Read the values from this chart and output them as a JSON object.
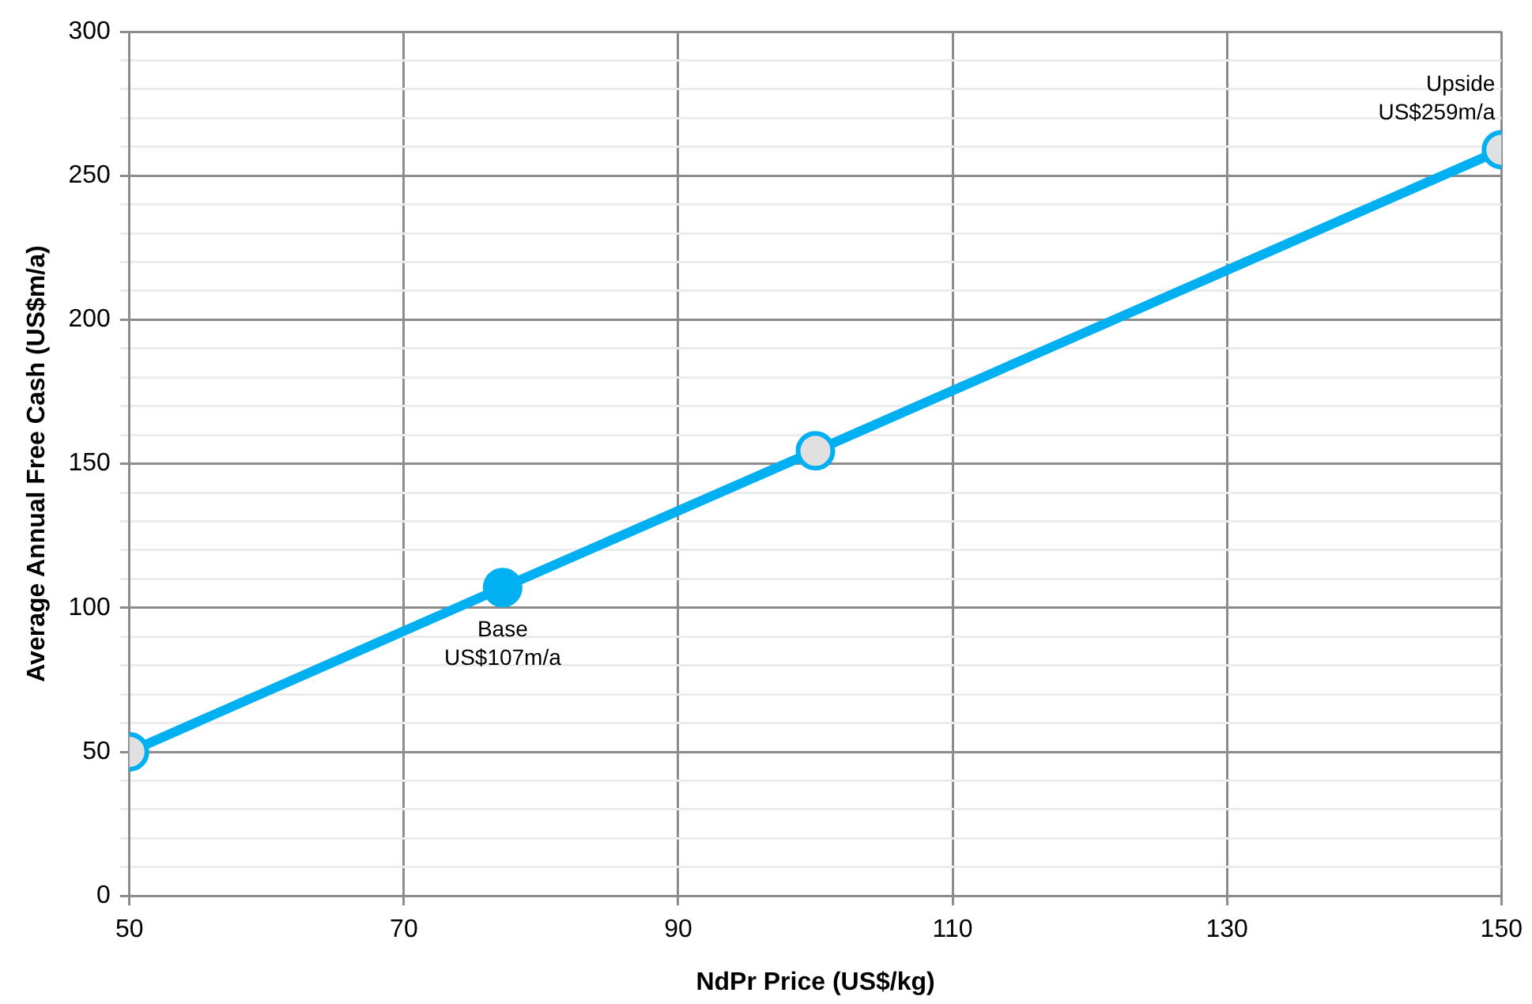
{
  "chart_data": {
    "type": "line",
    "xlabel": "NdPr Price (US$/kg)",
    "ylabel": "Average Annual Free Cash (US$m/a)",
    "x": [
      50,
      77.2,
      100,
      150
    ],
    "series": [
      {
        "color": "#00b0f0",
        "colors": [
          "#e0e0e0",
          "#00b0f0",
          "#e0e0e0",
          "#e0e0e0"
        ],
        "values": [
          50,
          107,
          154.5,
          259
        ]
      }
    ],
    "xlim": [
      50,
      150
    ],
    "xticks": [
      50,
      70,
      90,
      110,
      130,
      150
    ],
    "ylim": [
      0,
      300
    ],
    "yticks": [
      0,
      {
        "value": 10,
        "label": null
      },
      {
        "value": 20,
        "label": null
      },
      {
        "value": 30,
        "label": null
      },
      {
        "value": 40,
        "label": null
      },
      50,
      {
        "value": 60,
        "label": null
      },
      {
        "value": 70,
        "label": null
      },
      {
        "value": 80,
        "label": null
      },
      {
        "value": 90,
        "label": null
      },
      100,
      {
        "value": 110,
        "label": null
      },
      {
        "value": 120,
        "label": null
      },
      {
        "value": 130,
        "label": null
      },
      {
        "value": 140,
        "label": null
      },
      150,
      {
        "value": 160,
        "label": null
      },
      {
        "value": 170,
        "label": null
      },
      {
        "value": 180,
        "label": null
      },
      {
        "value": 190,
        "label": null
      },
      200,
      {
        "value": 210,
        "label": null
      },
      {
        "value": 220,
        "label": null
      },
      {
        "value": 230,
        "label": null
      },
      {
        "value": 240,
        "label": null
      },
      250,
      {
        "value": 260,
        "label": null
      },
      {
        "value": 270,
        "label": null
      },
      {
        "value": 280,
        "label": null
      },
      {
        "value": 290,
        "label": null
      },
      300
    ],
    "annotations": [
      {
        "text": "Base\nUS$107m/a",
        "x": 77.2,
        "y": 107
      },
      {
        "text": "Upside\nUS$259m/a",
        "x": 150,
        "y": 259
      }
    ],
    "grid": true,
    "legend": false,
    "marker": "circle",
    "line_style": "solid"
  }
}
